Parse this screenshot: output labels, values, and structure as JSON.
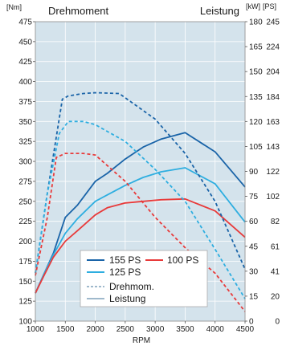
{
  "chart_data": {
    "type": "line",
    "title_left": "Drehmoment",
    "title_right": "Leistung",
    "xlabel": "RPM",
    "x_ticks": [
      1000,
      1500,
      2000,
      2500,
      3000,
      3500,
      4000,
      4500
    ],
    "xlim": [
      1000,
      4500
    ],
    "left_axis": {
      "unit": "[Nm]",
      "ylim": [
        100,
        475
      ],
      "ticks": [
        100,
        125,
        150,
        175,
        200,
        225,
        250,
        275,
        300,
        325,
        350,
        375,
        400,
        425,
        450,
        475
      ]
    },
    "right_axis": {
      "unit_kw": "[kW]",
      "unit_ps": "[PS]",
      "kw_ticks": [
        0,
        15,
        30,
        45,
        60,
        75,
        90,
        105,
        120,
        135,
        150,
        165,
        180
      ],
      "ps_ticks": [
        0,
        20,
        41,
        61,
        82,
        102,
        122,
        143,
        163,
        184,
        204,
        224,
        245
      ]
    },
    "grid": true,
    "background": "#d4e3ec",
    "series": [
      {
        "name": "155 PS",
        "kind": "Leistung",
        "color": "#1a64a8",
        "dashed": false,
        "points": [
          [
            1000,
            135
          ],
          [
            1150,
            160
          ],
          [
            1300,
            185
          ],
          [
            1500,
            230
          ],
          [
            1700,
            245
          ],
          [
            2000,
            275
          ],
          [
            2200,
            285
          ],
          [
            2500,
            303
          ],
          [
            2800,
            318
          ],
          [
            3100,
            328
          ],
          [
            3500,
            336
          ],
          [
            4000,
            312
          ],
          [
            4500,
            268
          ]
        ]
      },
      {
        "name": "125 PS",
        "kind": "Leistung",
        "color": "#2eaee0",
        "dashed": false,
        "points": [
          [
            1000,
            135
          ],
          [
            1150,
            160
          ],
          [
            1300,
            183
          ],
          [
            1500,
            210
          ],
          [
            1700,
            228
          ],
          [
            2000,
            250
          ],
          [
            2200,
            258
          ],
          [
            2500,
            270
          ],
          [
            2800,
            280
          ],
          [
            3100,
            287
          ],
          [
            3500,
            292
          ],
          [
            4000,
            272
          ],
          [
            4500,
            224
          ]
        ]
      },
      {
        "name": "100 PS",
        "kind": "Leistung",
        "color": "#e83a3a",
        "dashed": false,
        "points": [
          [
            1000,
            135
          ],
          [
            1150,
            158
          ],
          [
            1300,
            180
          ],
          [
            1500,
            200
          ],
          [
            1700,
            213
          ],
          [
            2000,
            233
          ],
          [
            2200,
            242
          ],
          [
            2500,
            248
          ],
          [
            2800,
            250
          ],
          [
            3100,
            252
          ],
          [
            3500,
            253
          ],
          [
            4000,
            238
          ],
          [
            4500,
            205
          ]
        ]
      },
      {
        "name": "155 PS",
        "kind": "Drehmom.",
        "color": "#1a64a8",
        "dashed": true,
        "points": [
          [
            1000,
            160
          ],
          [
            1200,
            260
          ],
          [
            1450,
            378
          ],
          [
            1550,
            382
          ],
          [
            1800,
            385
          ],
          [
            2000,
            386
          ],
          [
            2400,
            385
          ],
          [
            3000,
            353
          ],
          [
            3500,
            310
          ],
          [
            4000,
            250
          ],
          [
            4500,
            165
          ]
        ]
      },
      {
        "name": "125 PS",
        "kind": "Drehmom.",
        "color": "#2eaee0",
        "dashed": true,
        "points": [
          [
            1000,
            160
          ],
          [
            1200,
            260
          ],
          [
            1400,
            335
          ],
          [
            1550,
            350
          ],
          [
            1800,
            350
          ],
          [
            2000,
            346
          ],
          [
            2500,
            325
          ],
          [
            3000,
            290
          ],
          [
            3500,
            250
          ],
          [
            4000,
            190
          ],
          [
            4500,
            128
          ]
        ]
      },
      {
        "name": "100 PS",
        "kind": "Drehmom.",
        "color": "#e83a3a",
        "dashed": true,
        "points": [
          [
            1000,
            157
          ],
          [
            1200,
            230
          ],
          [
            1350,
            305
          ],
          [
            1500,
            310
          ],
          [
            1800,
            310
          ],
          [
            2000,
            308
          ],
          [
            2500,
            275
          ],
          [
            3000,
            230
          ],
          [
            3500,
            192
          ],
          [
            4000,
            160
          ],
          [
            4500,
            112
          ]
        ]
      }
    ],
    "legend": {
      "position": "bottom-center",
      "entries": [
        {
          "label": "155 PS",
          "color": "#1a64a8"
        },
        {
          "label": "100 PS",
          "color": "#e83a3a"
        },
        {
          "label": "125 PS",
          "color": "#2eaee0"
        },
        {
          "label": "Drehmom.",
          "color": "#9fb9cc",
          "dashed": true
        },
        {
          "label": "Leistung",
          "color": "#9fb9cc",
          "dashed": false
        }
      ]
    }
  }
}
